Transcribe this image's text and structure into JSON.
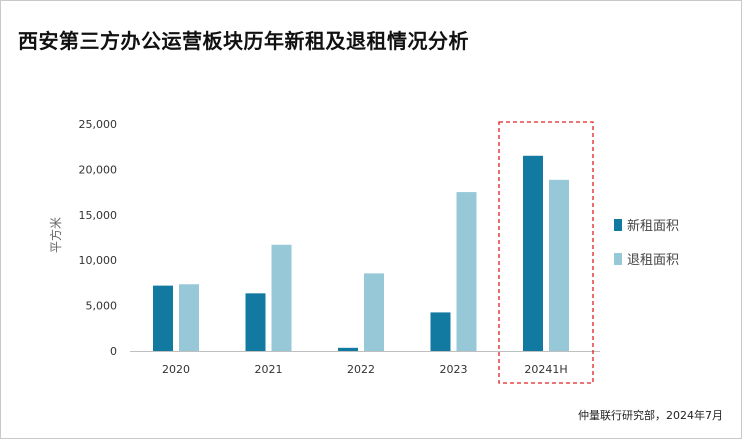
{
  "title": "西安第三方办公运营板块历年新租及退租情况分析",
  "source": "仲量联行研究部，2024年7月",
  "chart_data": {
    "type": "bar",
    "categories": [
      "2020",
      "2021",
      "2022",
      "2023",
      "20241H"
    ],
    "series": [
      {
        "name": "新租面积",
        "values": [
          7200,
          6350,
          350,
          4250,
          21500
        ],
        "color": "#1279a1"
      },
      {
        "name": "退租面积",
        "values": [
          7350,
          11700,
          8550,
          17500,
          18850
        ],
        "color": "#96c8d8"
      }
    ],
    "ylabel": "平方米",
    "xlabel": "",
    "ylim": [
      0,
      25000
    ],
    "yticks": [
      0,
      5000,
      10000,
      15000,
      20000,
      25000
    ],
    "ytick_labels": [
      "0",
      "5,000",
      "10,000",
      "15,000",
      "20,000",
      "25,000"
    ],
    "legend_position": "right",
    "highlight_category": "20241H",
    "highlight_color": "#e02020",
    "grid": false
  }
}
